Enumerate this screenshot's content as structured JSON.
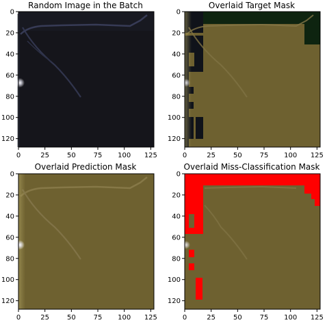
{
  "chart_data": [
    {
      "type": "image",
      "title": "Random Image in the Batch",
      "xticks": [
        0,
        25,
        50,
        75,
        100,
        125
      ],
      "yticks": [
        0,
        20,
        40,
        60,
        80,
        100,
        120
      ],
      "xlim": [
        0,
        128
      ],
      "ylim": [
        0,
        128
      ],
      "description_palette": {
        "base": "#14141a",
        "vein": "#3a3e58",
        "highlight": "#e8e8e8"
      }
    },
    {
      "type": "image",
      "title": "Overlaid Target Mask",
      "xticks": [
        0,
        25,
        50,
        75,
        100,
        125
      ],
      "yticks": [
        0,
        20,
        40,
        60,
        80,
        100,
        120
      ],
      "xlim": [
        0,
        128
      ],
      "ylim": [
        0,
        128
      ],
      "colors": {
        "mask": "#6e6130",
        "background_tint": "#0e2410",
        "dark": "#10131a"
      }
    },
    {
      "type": "image",
      "title": "Overlaid Prediction Mask",
      "xticks": [
        0,
        25,
        50,
        75,
        100,
        125
      ],
      "yticks": [
        0,
        20,
        40,
        60,
        80,
        100,
        120
      ],
      "xlim": [
        0,
        128
      ],
      "ylim": [
        0,
        128
      ],
      "colors": {
        "mask": "#6e6130",
        "edge_glow": "#8d8048"
      }
    },
    {
      "type": "image",
      "title": "Overlaid Miss-Classification Mask",
      "xticks": [
        0,
        25,
        50,
        75,
        100,
        125
      ],
      "yticks": [
        0,
        20,
        40,
        60,
        80,
        100,
        120
      ],
      "xlim": [
        0,
        128
      ],
      "ylim": [
        0,
        128
      ],
      "colors": {
        "mask": "#6e6130",
        "error": "#ff0000"
      }
    }
  ]
}
